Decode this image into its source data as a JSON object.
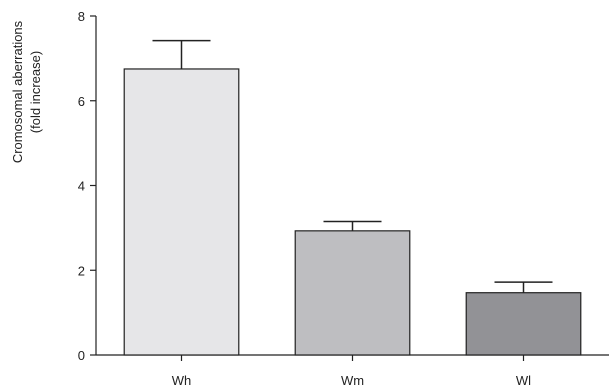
{
  "chart_data": {
    "type": "bar",
    "title": "",
    "xlabel": "",
    "ylabel": [
      "Cromosomal aberrations",
      "(fold increase)"
    ],
    "ylim": [
      0,
      8
    ],
    "yticks": [
      0,
      2,
      4,
      6,
      8
    ],
    "grid": false,
    "categories": [
      "Wh",
      "Wm",
      "Wl"
    ],
    "values": [
      6.75,
      2.93,
      1.47
    ],
    "error_upper": [
      7.42,
      3.15,
      1.72
    ],
    "colors": [
      "#e6e6e8",
      "#bebec1",
      "#929296"
    ]
  }
}
